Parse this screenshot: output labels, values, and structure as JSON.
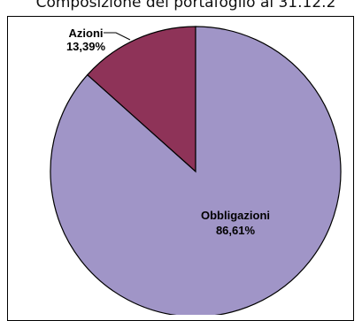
{
  "chart_data": {
    "type": "pie",
    "title": "Composizione del portafoglio al 31.12.2",
    "slices": [
      {
        "label": "Azioni",
        "value": 13.39,
        "value_text": "13,39%",
        "color": "#8E3358"
      },
      {
        "label": "Obbligazioni",
        "value": 86.61,
        "value_text": "86,61%",
        "color": "#A095C7"
      }
    ],
    "start_angle": "12 o'clock",
    "direction": "counter-clockwise",
    "legend": "none"
  }
}
